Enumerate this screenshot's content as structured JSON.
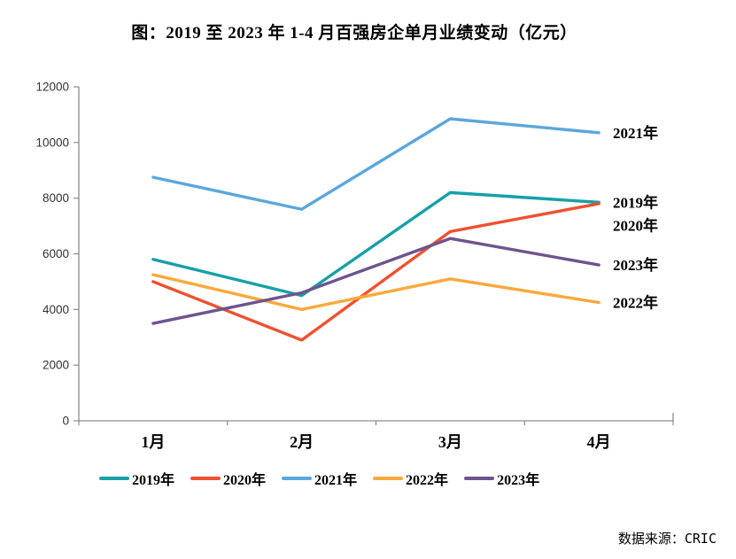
{
  "title": "图：2019 至 2023 年 1-4 月百强房企单月业绩变动（亿元）",
  "source_note": "数据来源：CRIC",
  "chart_data": {
    "type": "line",
    "title": "图：2019 至 2023 年 1-4 月百强房企单月业绩变动（亿元）",
    "unit": "亿元",
    "categories": [
      "1月",
      "2月",
      "3月",
      "4月"
    ],
    "series": [
      {
        "name": "2019年",
        "color": "#16A0A8",
        "values": [
          5800,
          4500,
          8200,
          7850
        ]
      },
      {
        "name": "2020年",
        "color": "#F1502F",
        "values": [
          5000,
          2900,
          6800,
          7800
        ]
      },
      {
        "name": "2021年",
        "color": "#5BA7DC",
        "values": [
          8750,
          7600,
          10850,
          10350
        ]
      },
      {
        "name": "2022年",
        "color": "#FAA93C",
        "values": [
          5250,
          4000,
          5100,
          4250
        ]
      },
      {
        "name": "2023年",
        "color": "#6E548E",
        "values": [
          3500,
          4600,
          6550,
          5600
        ]
      }
    ],
    "xlabel": "",
    "ylabel": "",
    "ylim": [
      0,
      12000
    ],
    "ytick_step": 2000,
    "grid": false,
    "legend_position": "bottom",
    "end_labels": true,
    "axis_color": "#8C8C8C"
  }
}
